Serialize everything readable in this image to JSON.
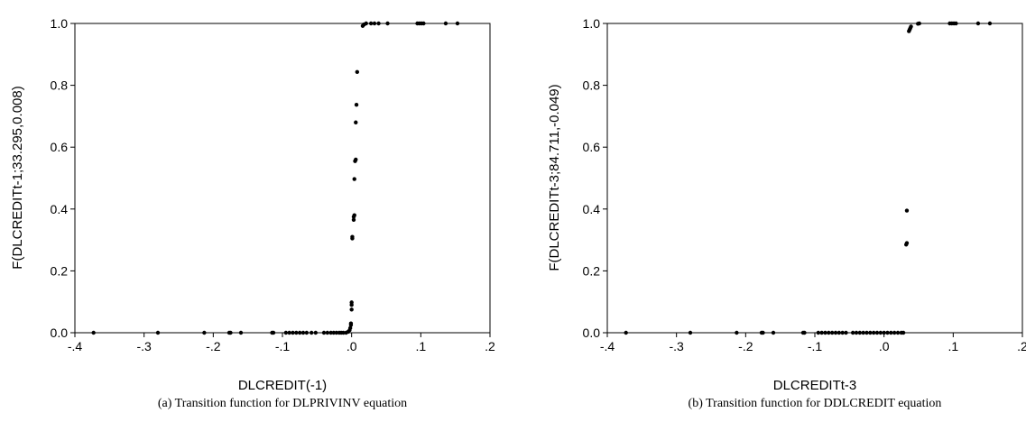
{
  "chart_data": [
    {
      "type": "scatter",
      "xlabel": "DLCREDIT(-1)",
      "ylabel": "F(DLCREDITt-1;33.295,0.008)",
      "caption": "(a) Transition function for DLPRIVINV equation",
      "xlim": [
        -0.4,
        0.2
      ],
      "ylim": [
        0.0,
        1.0
      ],
      "xticks": [
        "-.4",
        "-.3",
        "-.2",
        "-.1",
        ".0",
        ".1",
        ".2"
      ],
      "yticks": [
        "0.0",
        "0.2",
        "0.4",
        "0.6",
        "0.8",
        "1.0"
      ],
      "grid": false,
      "points": [
        [
          -0.373,
          0.0
        ],
        [
          -0.28,
          0.0
        ],
        [
          -0.213,
          0.0
        ],
        [
          -0.177,
          0.0
        ],
        [
          -0.175,
          0.0
        ],
        [
          -0.16,
          0.0
        ],
        [
          -0.115,
          0.0
        ],
        [
          -0.113,
          0.0
        ],
        [
          -0.095,
          0.0
        ],
        [
          -0.09,
          0.0
        ],
        [
          -0.085,
          0.0
        ],
        [
          -0.08,
          0.0
        ],
        [
          -0.075,
          0.0
        ],
        [
          -0.07,
          0.0
        ],
        [
          -0.065,
          0.0
        ],
        [
          -0.058,
          0.0
        ],
        [
          -0.052,
          0.0
        ],
        [
          -0.04,
          0.0
        ],
        [
          -0.035,
          0.0
        ],
        [
          -0.03,
          0.0
        ],
        [
          -0.026,
          0.0
        ],
        [
          -0.022,
          0.0
        ],
        [
          -0.018,
          0.0
        ],
        [
          -0.015,
          0.0
        ],
        [
          -0.012,
          0.0
        ],
        [
          -0.008,
          0.0
        ],
        [
          -0.005,
          0.003
        ],
        [
          -0.003,
          0.008
        ],
        [
          -0.002,
          0.015
        ],
        [
          -0.001,
          0.025
        ],
        [
          -0.001,
          0.03
        ],
        [
          0.0,
          0.075
        ],
        [
          0.0,
          0.09
        ],
        [
          0.0,
          0.098
        ],
        [
          0.001,
          0.305
        ],
        [
          0.001,
          0.31
        ],
        [
          0.003,
          0.365
        ],
        [
          0.003,
          0.375
        ],
        [
          0.004,
          0.38
        ],
        [
          0.004,
          0.497
        ],
        [
          0.005,
          0.555
        ],
        [
          0.006,
          0.56
        ],
        [
          0.006,
          0.68
        ],
        [
          0.007,
          0.737
        ],
        [
          0.008,
          0.843
        ],
        [
          0.016,
          0.992
        ],
        [
          0.018,
          0.997
        ],
        [
          0.021,
          1.0
        ],
        [
          0.028,
          1.0
        ],
        [
          0.033,
          1.0
        ],
        [
          0.039,
          1.0
        ],
        [
          0.052,
          1.0
        ],
        [
          0.095,
          1.0
        ],
        [
          0.098,
          1.0
        ],
        [
          0.101,
          1.0
        ],
        [
          0.104,
          1.0
        ],
        [
          0.136,
          1.0
        ],
        [
          0.153,
          1.0
        ]
      ]
    },
    {
      "type": "scatter",
      "xlabel": "DLCREDITt-3",
      "ylabel": "F(DLCREDITt-3;84.711,-0.049)",
      "caption": "(b) Transition function for DDLCREDIT equation",
      "xlim": [
        -0.4,
        0.2
      ],
      "ylim": [
        0.0,
        1.0
      ],
      "xticks": [
        "-.4",
        "-.3",
        "-.2",
        "-.1",
        ".0",
        ".1",
        ".2"
      ],
      "yticks": [
        "0.0",
        "0.2",
        "0.4",
        "0.6",
        "0.8",
        "1.0"
      ],
      "grid": false,
      "points": [
        [
          -0.373,
          0.0
        ],
        [
          -0.28,
          0.0
        ],
        [
          -0.213,
          0.0
        ],
        [
          -0.177,
          0.0
        ],
        [
          -0.175,
          0.0
        ],
        [
          -0.16,
          0.0
        ],
        [
          -0.117,
          0.0
        ],
        [
          -0.115,
          0.0
        ],
        [
          -0.095,
          0.0
        ],
        [
          -0.09,
          0.0
        ],
        [
          -0.085,
          0.0
        ],
        [
          -0.08,
          0.0
        ],
        [
          -0.075,
          0.0
        ],
        [
          -0.07,
          0.0
        ],
        [
          -0.065,
          0.0
        ],
        [
          -0.06,
          0.0
        ],
        [
          -0.055,
          0.0
        ],
        [
          -0.045,
          0.0
        ],
        [
          -0.04,
          0.0
        ],
        [
          -0.035,
          0.0
        ],
        [
          -0.03,
          0.0
        ],
        [
          -0.025,
          0.0
        ],
        [
          -0.02,
          0.0
        ],
        [
          -0.015,
          0.0
        ],
        [
          -0.01,
          0.0
        ],
        [
          -0.005,
          0.0
        ],
        [
          0.0,
          0.0
        ],
        [
          0.005,
          0.0
        ],
        [
          0.01,
          0.0
        ],
        [
          0.015,
          0.0
        ],
        [
          0.02,
          0.0
        ],
        [
          0.025,
          0.0
        ],
        [
          0.028,
          0.0
        ],
        [
          0.032,
          0.285
        ],
        [
          0.033,
          0.29
        ],
        [
          0.033,
          0.395
        ],
        [
          0.036,
          0.975
        ],
        [
          0.037,
          0.98
        ],
        [
          0.038,
          0.985
        ],
        [
          0.039,
          0.99
        ],
        [
          0.049,
          0.999
        ],
        [
          0.051,
          1.0
        ],
        [
          0.095,
          1.0
        ],
        [
          0.098,
          1.0
        ],
        [
          0.101,
          1.0
        ],
        [
          0.104,
          1.0
        ],
        [
          0.136,
          1.0
        ],
        [
          0.153,
          1.0
        ]
      ]
    }
  ]
}
